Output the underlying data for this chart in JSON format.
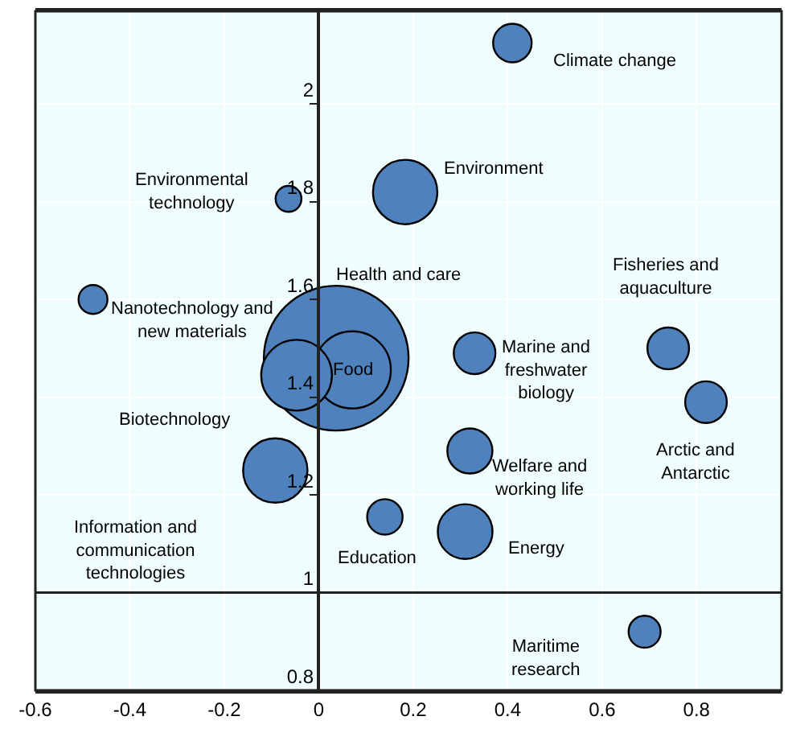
{
  "chart_data": {
    "type": "bubble",
    "x": [
      0.41,
      0.183,
      -0.064,
      -0.478,
      0.037,
      0.071,
      0.33,
      0.74,
      -0.047,
      0.82,
      0.32,
      -0.092,
      0.14,
      0.31,
      0.69
    ],
    "series": [
      {
        "color": "#4f81bd",
        "values": [
          2.125,
          1.82,
          1.806,
          1.6,
          1.48,
          1.456,
          1.49,
          1.5,
          1.445,
          1.39,
          1.29,
          1.25,
          1.155,
          1.125,
          0.92
        ],
        "sizes": [
          0.071,
          0.198,
          0.032,
          0.04,
          1,
          0.284,
          0.083,
          0.083,
          0.239,
          0.083,
          0.097,
          0.198,
          0.06,
          0.143,
          0.049
        ]
      }
    ],
    "annotations": [
      "Climate change",
      "Environment",
      "Environmental\ntechnology",
      "Nanotechnology and\nnew materials",
      "Health and care",
      "Food",
      "Marine and\nfreshwater\nbiology",
      "Fisheries and\naquaculture",
      "Biotechnology",
      "Arctic and\nAntarctic",
      "Welfare and\nworking life",
      "Information and\ncommunication\ntechnologies",
      "Education",
      "Energy",
      "Maritime\nresearch"
    ],
    "xlim": [
      -0.6,
      0.98
    ],
    "xticks": [
      -0.6,
      -0.4,
      -0.2,
      0,
      0.2,
      0.4,
      0.6,
      0.8
    ],
    "ylim": [
      0.8,
      2.19
    ],
    "yticks": [
      0.8,
      1,
      1.2,
      1.4,
      1.6,
      1.8,
      2
    ],
    "ref_lines": [
      {
        "axis": "y",
        "value": 1
      }
    ],
    "grid": true
  }
}
